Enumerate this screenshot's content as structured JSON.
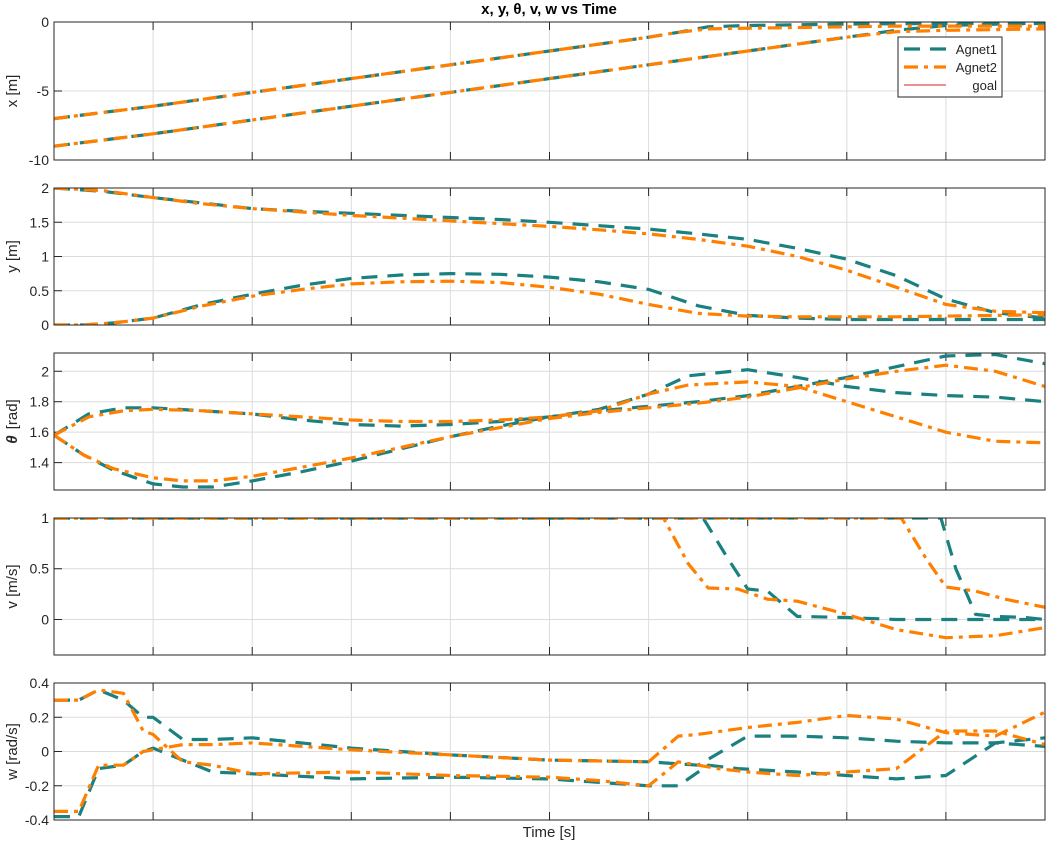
{
  "figure": {
    "title": "x, y, θ, v, w vs Time",
    "xlabel": "Time [s]"
  },
  "colors": {
    "agent1": "#1a8080",
    "agent2": "#ff8000",
    "goal": "#d62020",
    "grid": "#dcdcdc",
    "axes": "#262626"
  },
  "legend": {
    "placement": "top-right",
    "entries": [
      "Agnet1",
      "Agnet2",
      "goal"
    ]
  },
  "chart_data": [
    {
      "type": "line",
      "ylabel": "x [m]",
      "xlim": [
        0,
        10
      ],
      "ylim": [
        -10,
        0
      ],
      "yticks": [
        0,
        -5,
        -10
      ],
      "ytick_labels": [
        "0",
        "-5",
        "-10"
      ],
      "grid": true,
      "goal": 0,
      "series": [
        {
          "name": "Agnet1",
          "style": "dashed",
          "x": [
            0,
            1,
            2,
            3,
            4,
            5,
            6,
            6.5,
            7,
            7.5,
            8,
            8.5,
            9,
            9.5,
            10
          ],
          "y": [
            -9,
            -8.1,
            -7.1,
            -6.1,
            -5.1,
            -4.1,
            -3.1,
            -2.6,
            -2.1,
            -1.6,
            -1.1,
            -0.6,
            -0.25,
            -0.15,
            -0.1
          ]
        },
        {
          "name": "Agnet1",
          "style": "dashed",
          "x": [
            0,
            1,
            2,
            3,
            4,
            5,
            6,
            6.3,
            6.6,
            7,
            7.5,
            8,
            8.5,
            9,
            9.5,
            10
          ],
          "y": [
            -7,
            -6.1,
            -5.1,
            -4.1,
            -3.1,
            -2.1,
            -1.1,
            -0.75,
            -0.35,
            -0.25,
            -0.2,
            -0.15,
            -0.12,
            -0.1,
            -0.1,
            -0.1
          ]
        },
        {
          "name": "Agnet2",
          "style": "dashdot",
          "x": [
            0,
            1,
            2,
            3,
            4,
            5,
            6,
            6.5,
            7,
            7.5,
            8,
            8.5,
            9,
            9.5,
            10
          ],
          "y": [
            -9,
            -8.1,
            -7.1,
            -6.1,
            -5.1,
            -4.1,
            -3.1,
            -2.6,
            -2.1,
            -1.6,
            -1.1,
            -0.7,
            -0.6,
            -0.55,
            -0.5
          ]
        },
        {
          "name": "Agnet2",
          "style": "dashdot",
          "x": [
            0,
            1,
            2,
            3,
            4,
            5,
            6,
            6.3,
            6.6,
            7,
            7.5,
            8,
            8.5,
            9,
            9.5,
            10
          ],
          "y": [
            -7,
            -6.1,
            -5.1,
            -4.1,
            -3.1,
            -2.1,
            -1.1,
            -0.75,
            -0.5,
            -0.45,
            -0.4,
            -0.35,
            -0.3,
            -0.3,
            -0.3,
            -0.3
          ]
        }
      ]
    },
    {
      "type": "line",
      "ylabel": "y [m]",
      "xlim": [
        0,
        10
      ],
      "ylim": [
        0,
        2
      ],
      "yticks": [
        0,
        0.5,
        1,
        1.5,
        2
      ],
      "ytick_labels": [
        "0",
        "0.5",
        "1",
        "1.5",
        "2"
      ],
      "grid": true,
      "goal": 0,
      "series": [
        {
          "name": "Agnet1",
          "style": "dashed",
          "x": [
            0,
            0.5,
            1,
            1.5,
            2,
            2.5,
            3,
            3.5,
            4,
            4.5,
            5,
            5.5,
            6,
            6.5,
            7,
            7.5,
            8,
            8.5,
            9,
            9.5,
            10
          ],
          "y": [
            2,
            1.95,
            1.86,
            1.78,
            1.7,
            1.66,
            1.63,
            1.6,
            1.57,
            1.54,
            1.5,
            1.45,
            1.4,
            1.33,
            1.25,
            1.12,
            0.96,
            0.72,
            0.38,
            0.18,
            0.1
          ]
        },
        {
          "name": "Agnet1",
          "style": "dashed",
          "x": [
            0,
            0.3,
            0.6,
            1,
            1.5,
            2,
            2.5,
            3,
            3.5,
            4,
            4.5,
            5,
            5.5,
            6,
            6.5,
            7,
            7.5,
            8,
            8.5,
            9,
            9.5,
            10
          ],
          "y": [
            0,
            0,
            0.03,
            0.1,
            0.3,
            0.45,
            0.58,
            0.68,
            0.73,
            0.75,
            0.74,
            0.7,
            0.63,
            0.52,
            0.28,
            0.14,
            0.1,
            0.08,
            0.08,
            0.08,
            0.08,
            0.08
          ]
        },
        {
          "name": "Agnet2",
          "style": "dashdot",
          "x": [
            0,
            0.5,
            1,
            1.5,
            2,
            2.5,
            3,
            3.5,
            4,
            4.5,
            5,
            5.5,
            6,
            6.5,
            7,
            7.5,
            8,
            8.5,
            9,
            9.5,
            10
          ],
          "y": [
            2,
            1.96,
            1.86,
            1.77,
            1.7,
            1.65,
            1.6,
            1.56,
            1.52,
            1.48,
            1.44,
            1.39,
            1.33,
            1.25,
            1.15,
            1.0,
            0.8,
            0.55,
            0.3,
            0.2,
            0.18
          ]
        },
        {
          "name": "Agnet2",
          "style": "dashdot",
          "x": [
            0,
            0.3,
            0.6,
            1,
            1.5,
            2,
            2.5,
            3,
            3.5,
            4,
            4.5,
            5,
            5.5,
            6,
            6.5,
            7,
            7.5,
            8,
            8.5,
            9,
            9.5,
            10
          ],
          "y": [
            0,
            0,
            0.03,
            0.1,
            0.28,
            0.42,
            0.52,
            0.6,
            0.63,
            0.64,
            0.62,
            0.55,
            0.45,
            0.3,
            0.17,
            0.13,
            0.12,
            0.12,
            0.12,
            0.13,
            0.14,
            0.15
          ]
        }
      ]
    },
    {
      "type": "line",
      "ylabel": "θ [rad]",
      "ylabel_symbol": "θ",
      "ylabel_unit": "[rad]",
      "xlim": [
        0,
        10
      ],
      "ylim": [
        1.22,
        2.12
      ],
      "yticks": [
        1.4,
        1.6,
        1.8,
        2
      ],
      "ytick_labels": [
        "1.4",
        "1.6",
        "1.8",
        "2"
      ],
      "grid": true,
      "series": [
        {
          "name": "Agnet1",
          "style": "dashed",
          "x": [
            0,
            0.35,
            0.7,
            1,
            1.5,
            2,
            2.5,
            3,
            3.5,
            4,
            4.5,
            5,
            5.5,
            6,
            6.4,
            7,
            7.5,
            8,
            8.5,
            9,
            9.5,
            10
          ],
          "y": [
            1.58,
            1.72,
            1.76,
            1.76,
            1.74,
            1.72,
            1.68,
            1.65,
            1.64,
            1.65,
            1.67,
            1.7,
            1.75,
            1.85,
            1.97,
            2.01,
            1.96,
            1.9,
            1.86,
            1.84,
            1.83,
            1.8
          ]
        },
        {
          "name": "Agnet1",
          "style": "dashed",
          "x": [
            0,
            0.3,
            0.6,
            1,
            1.3,
            1.6,
            2,
            2.5,
            3,
            3.5,
            4,
            4.5,
            5,
            5.5,
            6,
            6.5,
            7,
            7.5,
            8,
            8.5,
            9,
            9.5,
            10
          ],
          "y": [
            1.58,
            1.45,
            1.35,
            1.26,
            1.24,
            1.24,
            1.28,
            1.34,
            1.41,
            1.49,
            1.57,
            1.64,
            1.7,
            1.74,
            1.77,
            1.8,
            1.84,
            1.9,
            1.96,
            2.03,
            2.1,
            2.11,
            2.05
          ]
        },
        {
          "name": "Agnet2",
          "style": "dashdot",
          "x": [
            0,
            0.35,
            0.7,
            1,
            1.5,
            2,
            2.5,
            3,
            3.5,
            4,
            4.5,
            5,
            5.5,
            6,
            6.4,
            7,
            7.5,
            8,
            8.5,
            9,
            9.5,
            10
          ],
          "y": [
            1.58,
            1.7,
            1.74,
            1.75,
            1.74,
            1.72,
            1.7,
            1.68,
            1.67,
            1.67,
            1.68,
            1.7,
            1.74,
            1.85,
            1.91,
            1.93,
            1.9,
            1.8,
            1.7,
            1.6,
            1.54,
            1.53
          ]
        },
        {
          "name": "Agnet2",
          "style": "dashdot",
          "x": [
            0,
            0.3,
            0.6,
            1,
            1.3,
            1.6,
            2,
            2.5,
            3,
            3.5,
            4,
            4.5,
            5,
            5.5,
            6,
            6.5,
            7,
            7.5,
            8,
            8.5,
            9,
            9.5,
            10
          ],
          "y": [
            1.58,
            1.45,
            1.36,
            1.3,
            1.28,
            1.28,
            1.31,
            1.37,
            1.43,
            1.5,
            1.57,
            1.63,
            1.69,
            1.73,
            1.76,
            1.79,
            1.83,
            1.89,
            1.95,
            2.0,
            2.04,
            2.0,
            1.9
          ]
        }
      ]
    },
    {
      "type": "line",
      "ylabel": "v [m/s]",
      "xlim": [
        0,
        10
      ],
      "ylim": [
        -0.35,
        1
      ],
      "yticks": [
        0,
        0.5,
        1
      ],
      "ytick_labels": [
        "0",
        "0.5",
        "1"
      ],
      "grid": true,
      "series": [
        {
          "name": "Agnet1",
          "style": "dashed",
          "x": [
            0,
            6.55,
            6.8,
            7.0,
            7.2,
            7.5,
            8,
            8.5,
            9,
            9.5,
            10
          ],
          "y": [
            1,
            1,
            0.6,
            0.3,
            0.28,
            0.03,
            0.02,
            0.0,
            0.0,
            0.0,
            0.0
          ]
        },
        {
          "name": "Agnet1",
          "style": "dashed",
          "x": [
            0,
            8.95,
            9.1,
            9.3,
            9.5,
            9.8,
            10
          ],
          "y": [
            1,
            1,
            0.5,
            0.05,
            0.03,
            0.02,
            0.0
          ]
        },
        {
          "name": "Agnet2",
          "style": "dashdot",
          "x": [
            0,
            6.15,
            6.4,
            6.6,
            6.9,
            7.2,
            7.5,
            8,
            8.5,
            9,
            9.5,
            10
          ],
          "y": [
            1,
            1,
            0.55,
            0.31,
            0.3,
            0.2,
            0.18,
            0.05,
            -0.1,
            -0.18,
            -0.16,
            -0.08
          ]
        },
        {
          "name": "Agnet2",
          "style": "dashdot",
          "x": [
            0,
            8.55,
            8.8,
            9.0,
            9.3,
            9.6,
            10
          ],
          "y": [
            1,
            1,
            0.6,
            0.32,
            0.28,
            0.2,
            0.12
          ]
        }
      ]
    },
    {
      "type": "line",
      "ylabel": "w [rad/s]",
      "xlim": [
        0,
        10
      ],
      "ylim": [
        -0.4,
        0.4
      ],
      "yticks": [
        0.4,
        0.2,
        0,
        -0.2,
        -0.4
      ],
      "ytick_labels": [
        "0.4",
        "0.2",
        "0",
        "-0.2",
        "-0.4"
      ],
      "grid": true,
      "series": [
        {
          "name": "Agnet1",
          "style": "dashed",
          "x": [
            0,
            0.25,
            0.45,
            0.7,
            0.9,
            1.0,
            1.3,
            1.6,
            2,
            3,
            4,
            5,
            6,
            6.5,
            7,
            7.5,
            8,
            8.5,
            9,
            9.5,
            10
          ],
          "y": [
            0.3,
            0.3,
            0.36,
            0.3,
            0.2,
            0.2,
            0.07,
            0.07,
            0.08,
            0.02,
            -0.02,
            -0.05,
            -0.06,
            -0.08,
            0.09,
            0.09,
            0.08,
            0.06,
            0.05,
            0.05,
            0.08
          ]
        },
        {
          "name": "Agnet1",
          "style": "dashed",
          "x": [
            0,
            0.25,
            0.45,
            0.7,
            0.9,
            1.0,
            1.3,
            1.6,
            2,
            3,
            4,
            5,
            6,
            6.3,
            6.6,
            6.9,
            7.5,
            8,
            8.5,
            9,
            9.5,
            10
          ],
          "y": [
            -0.38,
            -0.38,
            -0.1,
            -0.08,
            0.0,
            0.02,
            -0.05,
            -0.12,
            -0.13,
            -0.16,
            -0.15,
            -0.16,
            -0.2,
            -0.2,
            -0.08,
            -0.1,
            -0.12,
            -0.14,
            -0.16,
            -0.14,
            0.05,
            0.03
          ]
        },
        {
          "name": "Agnet2",
          "style": "dashdot",
          "x": [
            0,
            0.25,
            0.45,
            0.7,
            0.9,
            1.0,
            1.3,
            1.6,
            2,
            3,
            4,
            5,
            5.5,
            6,
            6.3,
            6.7,
            7,
            7.5,
            8,
            8.5,
            9,
            9.5,
            10
          ],
          "y": [
            0.3,
            0.3,
            0.36,
            0.34,
            0.12,
            0.1,
            -0.06,
            -0.08,
            -0.13,
            -0.12,
            -0.14,
            -0.15,
            -0.17,
            -0.2,
            -0.06,
            -0.1,
            -0.12,
            -0.14,
            -0.12,
            -0.1,
            0.12,
            0.12,
            0.04
          ]
        },
        {
          "name": "Agnet2",
          "style": "dashdot",
          "x": [
            0,
            0.25,
            0.45,
            0.7,
            0.9,
            1.0,
            1.3,
            1.6,
            2,
            3,
            4,
            5,
            6,
            6.3,
            6.5,
            7,
            7.5,
            8,
            8.5,
            9,
            9.5,
            10
          ],
          "y": [
            -0.35,
            -0.35,
            -0.08,
            -0.08,
            0.0,
            0.01,
            0.04,
            0.04,
            0.05,
            0.01,
            -0.02,
            -0.05,
            -0.06,
            0.09,
            0.1,
            0.14,
            0.17,
            0.21,
            0.19,
            0.11,
            0.09,
            0.23
          ]
        }
      ]
    }
  ]
}
